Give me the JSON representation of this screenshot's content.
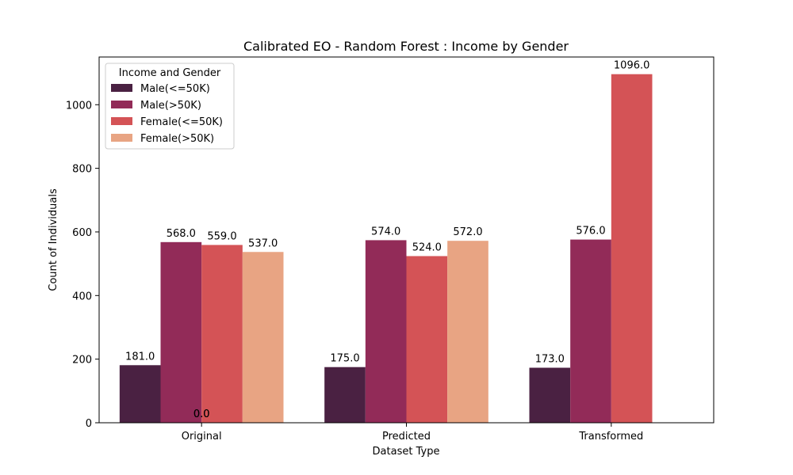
{
  "chart_data": {
    "type": "bar",
    "title": "Calibrated EO - Random Forest : Income by Gender",
    "xlabel": "Dataset Type",
    "ylabel": "Count of Individuals",
    "categories": [
      "Original",
      "Predicted",
      "Transformed"
    ],
    "ylim": [
      0,
      1150
    ],
    "yticks": [
      0,
      200,
      400,
      600,
      800,
      1000
    ],
    "grid": false,
    "legend": {
      "title": "Income and Gender",
      "placement": "top-left"
    },
    "series": [
      {
        "name": "Male(<=50K)",
        "color": "#4a2142",
        "values": [
          181,
          175,
          173
        ],
        "labels": [
          "181.0",
          "175.0",
          "173.0"
        ]
      },
      {
        "name": "Male(>50K)",
        "color": "#922b58",
        "values": [
          568,
          574,
          576
        ],
        "labels": [
          "568.0",
          "574.0",
          "576.0"
        ]
      },
      {
        "name": "Female(<=50K)",
        "color": "#d45356",
        "values": [
          559,
          524,
          1096
        ],
        "labels": [
          "559.0",
          "524.0",
          "1096.0"
        ]
      },
      {
        "name": "Female(>50K)",
        "color": "#e8a483",
        "values": [
          537,
          572,
          0
        ],
        "labels": [
          "537.0",
          "572.0",
          ""
        ]
      }
    ],
    "annotations": [
      {
        "text": "0.0",
        "category": "Original",
        "value": 0
      },
      {
        "text": "0.0",
        "category": "Original",
        "value": 0
      }
    ]
  }
}
